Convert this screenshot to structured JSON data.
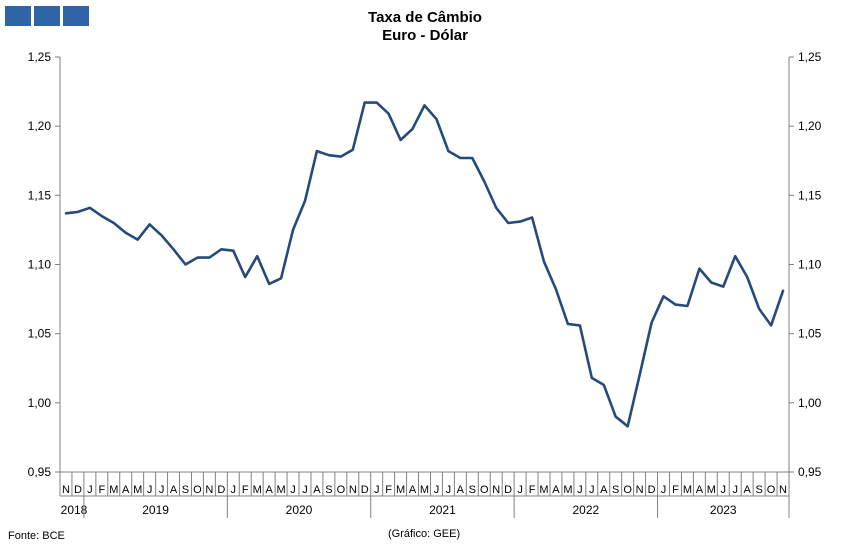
{
  "header": {
    "title": "Taxa de Câmbio",
    "subtitle": "Euro - Dólar",
    "logo_name": "gee-logo-blocks",
    "logo_color": "#2f65a7"
  },
  "footer": {
    "source": "Fonte: BCE",
    "credit": "(Gráfico: GEE)"
  },
  "chart_data": {
    "type": "line",
    "title": "Taxa de Câmbio",
    "subtitle": "Euro - Dólar",
    "xlabel": "",
    "ylabel": "",
    "ylim": [
      0.95,
      1.25
    ],
    "y_ticks": [
      "0,95",
      "1,00",
      "1,05",
      "1,10",
      "1,15",
      "1,20",
      "1,25"
    ],
    "y_axis_sides": [
      "left",
      "right"
    ],
    "grid": false,
    "legend": "none",
    "line_color": "#254a7c",
    "month_labels": [
      "N",
      "D",
      "J",
      "F",
      "M",
      "A",
      "M",
      "J",
      "J",
      "A",
      "S",
      "O",
      "N",
      "D",
      "J",
      "F",
      "M",
      "A",
      "M",
      "J",
      "J",
      "A",
      "S",
      "O",
      "N",
      "D",
      "J",
      "F",
      "M",
      "A",
      "M",
      "J",
      "J",
      "A",
      "S",
      "O",
      "N",
      "D",
      "J",
      "F",
      "M",
      "A",
      "M",
      "J",
      "J",
      "A",
      "S",
      "O",
      "N",
      "D",
      "J",
      "F",
      "M",
      "A",
      "M",
      "J",
      "J",
      "A",
      "S",
      "O",
      "N"
    ],
    "year_groups": [
      {
        "label": "2018",
        "start": 0,
        "count": 2
      },
      {
        "label": "2019",
        "start": 2,
        "count": 12
      },
      {
        "label": "2020",
        "start": 14,
        "count": 12
      },
      {
        "label": "2021",
        "start": 26,
        "count": 12
      },
      {
        "label": "2022",
        "start": 38,
        "count": 12
      },
      {
        "label": "2023",
        "start": 50,
        "count": 11
      }
    ],
    "series": [
      {
        "values": [
          1.137,
          1.138,
          1.141,
          1.135,
          1.13,
          1.123,
          1.118,
          1.129,
          1.121,
          1.111,
          1.1,
          1.105,
          1.105,
          1.111,
          1.11,
          1.091,
          1.106,
          1.086,
          1.09,
          1.125,
          1.146,
          1.182,
          1.179,
          1.178,
          1.183,
          1.217,
          1.217,
          1.209,
          1.19,
          1.198,
          1.215,
          1.205,
          1.182,
          1.177,
          1.177,
          1.16,
          1.141,
          1.13,
          1.131,
          1.134,
          1.102,
          1.082,
          1.057,
          1.056,
          1.018,
          1.013,
          0.99,
          0.983,
          1.02,
          1.058,
          1.077,
          1.071,
          1.07,
          1.097,
          1.087,
          1.084,
          1.106,
          1.091,
          1.068,
          1.056,
          1.081
        ]
      }
    ]
  }
}
